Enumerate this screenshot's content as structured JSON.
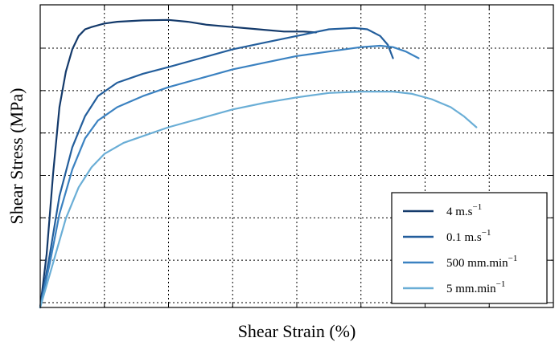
{
  "chart_data": {
    "type": "line",
    "title": "",
    "xlabel": "Shear Strain (%)",
    "ylabel": "Shear Stress (MPa)",
    "x_ticks_count": 8,
    "y_ticks_count": 6,
    "xlim": [
      0,
      8
    ],
    "ylim": [
      0,
      6.8
    ],
    "grid": true,
    "legend_position": "bottom-right",
    "series": [
      {
        "name": "4 m.s",
        "superscript": "−1",
        "color": "#143a6b",
        "points": [
          [
            0,
            0
          ],
          [
            0.1,
            1.2
          ],
          [
            0.2,
            3.0
          ],
          [
            0.3,
            4.5
          ],
          [
            0.4,
            5.3
          ],
          [
            0.5,
            5.8
          ],
          [
            0.6,
            6.1
          ],
          [
            0.7,
            6.25
          ],
          [
            0.8,
            6.3
          ],
          [
            1.0,
            6.38
          ],
          [
            1.2,
            6.42
          ],
          [
            1.6,
            6.45
          ],
          [
            2.0,
            6.46
          ],
          [
            2.3,
            6.42
          ],
          [
            2.6,
            6.35
          ],
          [
            3.0,
            6.3
          ],
          [
            3.4,
            6.25
          ],
          [
            3.8,
            6.2
          ],
          [
            4.1,
            6.2
          ],
          [
            4.3,
            6.18
          ]
        ]
      },
      {
        "name": "0.1 m.s",
        "superscript": "−1",
        "color": "#235e9c",
        "points": [
          [
            0,
            0
          ],
          [
            0.15,
            1.2
          ],
          [
            0.3,
            2.5
          ],
          [
            0.5,
            3.6
          ],
          [
            0.7,
            4.3
          ],
          [
            0.9,
            4.75
          ],
          [
            1.2,
            5.05
          ],
          [
            1.6,
            5.25
          ],
          [
            2.0,
            5.4
          ],
          [
            2.5,
            5.6
          ],
          [
            3.0,
            5.8
          ],
          [
            3.5,
            5.95
          ],
          [
            4.0,
            6.1
          ],
          [
            4.5,
            6.25
          ],
          [
            4.9,
            6.28
          ],
          [
            5.1,
            6.25
          ],
          [
            5.3,
            6.1
          ],
          [
            5.42,
            5.9
          ],
          [
            5.5,
            5.6
          ]
        ]
      },
      {
        "name": "500 mm.min",
        "superscript": "−1",
        "color": "#3b82c1",
        "points": [
          [
            0,
            0
          ],
          [
            0.15,
            1.0
          ],
          [
            0.3,
            2.1
          ],
          [
            0.5,
            3.1
          ],
          [
            0.7,
            3.8
          ],
          [
            0.9,
            4.2
          ],
          [
            1.2,
            4.5
          ],
          [
            1.6,
            4.75
          ],
          [
            2.0,
            4.95
          ],
          [
            2.5,
            5.15
          ],
          [
            3.0,
            5.35
          ],
          [
            3.5,
            5.5
          ],
          [
            4.0,
            5.65
          ],
          [
            4.5,
            5.75
          ],
          [
            5.0,
            5.85
          ],
          [
            5.3,
            5.88
          ],
          [
            5.5,
            5.85
          ],
          [
            5.7,
            5.75
          ],
          [
            5.9,
            5.6
          ]
        ]
      },
      {
        "name": "5 mm.min",
        "superscript": "−1",
        "color": "#6aaed6",
        "points": [
          [
            0,
            0
          ],
          [
            0.2,
            1.0
          ],
          [
            0.4,
            2.0
          ],
          [
            0.6,
            2.7
          ],
          [
            0.8,
            3.15
          ],
          [
            1.0,
            3.45
          ],
          [
            1.3,
            3.7
          ],
          [
            1.6,
            3.85
          ],
          [
            2.0,
            4.05
          ],
          [
            2.5,
            4.25
          ],
          [
            3.0,
            4.45
          ],
          [
            3.5,
            4.6
          ],
          [
            4.0,
            4.72
          ],
          [
            4.5,
            4.82
          ],
          [
            5.0,
            4.85
          ],
          [
            5.5,
            4.85
          ],
          [
            5.8,
            4.8
          ],
          [
            6.1,
            4.68
          ],
          [
            6.4,
            4.5
          ],
          [
            6.6,
            4.3
          ],
          [
            6.8,
            4.05
          ]
        ]
      }
    ]
  }
}
